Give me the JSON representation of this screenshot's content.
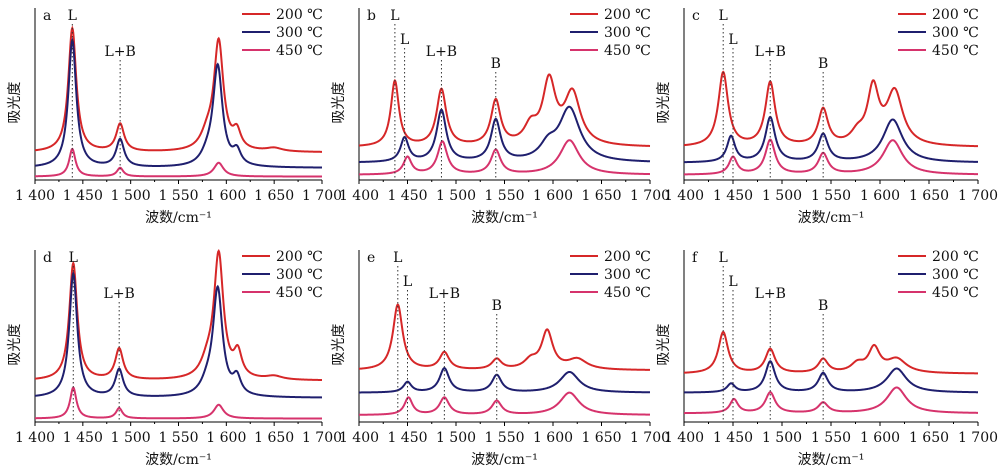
{
  "figure": {
    "background": "#ffffff"
  },
  "series_colors": [
    "#d62728",
    "#1f1f6e",
    "#d6336c"
  ],
  "chart_data": [
    {
      "panel": "a",
      "type": "line",
      "xlabel": "波数/cm⁻¹",
      "ylabel": "吸光度",
      "xlim": [
        1400,
        1700
      ],
      "xticks": [
        "1 400",
        "1 450",
        "1 500",
        "1 550",
        "1 600",
        "1 650",
        "1 700"
      ],
      "ylim": [
        0,
        1.0
      ],
      "legend": [
        "200 ℃",
        "300 ℃",
        "450 ℃"
      ],
      "legend_position": "top-right",
      "annotations": [
        {
          "text": "L",
          "x": 1439
        },
        {
          "text": "L+B",
          "x": 1489
        }
      ],
      "series": [
        {
          "baseline": 0.16,
          "peaks": [
            [
              1439,
              0.72,
              5
            ],
            [
              1489,
              0.16,
              5
            ],
            [
              1580,
              0.08,
              8
            ],
            [
              1592,
              0.63,
              6
            ],
            [
              1611,
              0.1,
              5
            ],
            [
              1650,
              0.02,
              10
            ]
          ]
        },
        {
          "baseline": 0.07,
          "peaks": [
            [
              1439,
              0.74,
              5
            ],
            [
              1489,
              0.16,
              5
            ],
            [
              1580,
              0.05,
              8
            ],
            [
              1591,
              0.58,
              6
            ],
            [
              1611,
              0.08,
              5
            ]
          ]
        },
        {
          "baseline": 0.02,
          "peaks": [
            [
              1439,
              0.16,
              4
            ],
            [
              1489,
              0.05,
              4
            ],
            [
              1592,
              0.08,
              6
            ]
          ]
        }
      ]
    },
    {
      "panel": "b",
      "type": "line",
      "xlabel": "波数/cm⁻¹",
      "ylabel": "吸光度",
      "xlim": [
        1400,
        1700
      ],
      "xticks": [
        "1 400",
        "1 450",
        "1 500",
        "1 550",
        "1 600",
        "1 650",
        "1 700"
      ],
      "ylim": [
        0,
        1.0
      ],
      "legend": [
        "200 ℃",
        "300 ℃",
        "450 ℃"
      ],
      "legend_position": "top-right",
      "annotations": [
        {
          "text": "L",
          "x": 1437
        },
        {
          "text": "L",
          "x": 1447
        },
        {
          "text": "L+B",
          "x": 1485
        },
        {
          "text": "B",
          "x": 1541
        }
      ],
      "series": [
        {
          "baseline": 0.19,
          "peaks": [
            [
              1437,
              0.38,
              5
            ],
            [
              1485,
              0.33,
              6
            ],
            [
              1541,
              0.26,
              6
            ],
            [
              1577,
              0.1,
              8
            ],
            [
              1596,
              0.36,
              8
            ],
            [
              1620,
              0.3,
              10
            ]
          ]
        },
        {
          "baseline": 0.1,
          "peaks": [
            [
              1447,
              0.14,
              5
            ],
            [
              1485,
              0.3,
              6
            ],
            [
              1541,
              0.24,
              6
            ],
            [
              1595,
              0.08,
              10
            ],
            [
              1617,
              0.31,
              13
            ]
          ]
        },
        {
          "baseline": 0.03,
          "peaks": [
            [
              1450,
              0.1,
              5
            ],
            [
              1486,
              0.19,
              6
            ],
            [
              1541,
              0.14,
              6
            ],
            [
              1617,
              0.2,
              12
            ]
          ]
        }
      ]
    },
    {
      "panel": "c",
      "type": "line",
      "xlabel": "波数/cm⁻¹",
      "ylabel": "吸光度",
      "xlim": [
        1400,
        1700
      ],
      "xticks": [
        "1 400",
        "1 450",
        "1 500",
        "1 550",
        "1 600",
        "1 650",
        "1 700"
      ],
      "ylim": [
        0,
        1.0
      ],
      "legend": [
        "200 ℃",
        "300 ℃",
        "450 ℃"
      ],
      "legend_position": "top-right",
      "annotations": [
        {
          "text": "L",
          "x": 1440
        },
        {
          "text": "L",
          "x": 1450
        },
        {
          "text": "L+B",
          "x": 1488
        },
        {
          "text": "B",
          "x": 1542
        }
      ],
      "series": [
        {
          "baseline": 0.19,
          "peaks": [
            [
              1440,
              0.43,
              6
            ],
            [
              1488,
              0.37,
              6
            ],
            [
              1542,
              0.21,
              6
            ],
            [
              1577,
              0.06,
              8
            ],
            [
              1593,
              0.32,
              7
            ],
            [
              1615,
              0.31,
              10
            ]
          ]
        },
        {
          "baseline": 0.1,
          "peaks": [
            [
              1448,
              0.15,
              5
            ],
            [
              1488,
              0.26,
              6
            ],
            [
              1542,
              0.16,
              6
            ],
            [
              1613,
              0.25,
              12
            ]
          ]
        },
        {
          "baseline": 0.03,
          "peaks": [
            [
              1450,
              0.1,
              5
            ],
            [
              1488,
              0.2,
              6
            ],
            [
              1542,
              0.12,
              6
            ],
            [
              1613,
              0.2,
              12
            ]
          ]
        }
      ]
    },
    {
      "panel": "d",
      "type": "line",
      "xlabel": "波数/cm⁻¹",
      "ylabel": "吸光度",
      "xlim": [
        1400,
        1700
      ],
      "xticks": [
        "1 400",
        "1 450",
        "1 500",
        "1 550",
        "1 600",
        "1 650",
        "1 700"
      ],
      "ylim": [
        0,
        1.0
      ],
      "legend": [
        "200 ℃",
        "300 ℃",
        "450 ℃"
      ],
      "legend_position": "top-right",
      "annotations": [
        {
          "text": "L",
          "x": 1440
        },
        {
          "text": "L+B",
          "x": 1488
        }
      ],
      "series": [
        {
          "baseline": 0.24,
          "peaks": [
            [
              1440,
              0.68,
              5
            ],
            [
              1488,
              0.18,
              5
            ],
            [
              1580,
              0.08,
              8
            ],
            [
              1592,
              0.72,
              6
            ],
            [
              1612,
              0.14,
              5
            ],
            [
              1650,
              0.02,
              10
            ]
          ]
        },
        {
          "baseline": 0.14,
          "peaks": [
            [
              1440,
              0.72,
              5
            ],
            [
              1488,
              0.16,
              5
            ],
            [
              1580,
              0.06,
              8
            ],
            [
              1591,
              0.62,
              6
            ],
            [
              1611,
              0.1,
              5
            ]
          ]
        },
        {
          "baseline": 0.02,
          "peaks": [
            [
              1440,
              0.18,
              4
            ],
            [
              1488,
              0.06,
              4
            ],
            [
              1592,
              0.08,
              6
            ]
          ]
        }
      ]
    },
    {
      "panel": "e",
      "type": "line",
      "xlabel": "波数/cm⁻¹",
      "ylabel": "吸光度",
      "xlim": [
        1400,
        1700
      ],
      "xticks": [
        "1 400",
        "1 450",
        "1 500",
        "1 550",
        "1 600",
        "1 650",
        "1 700"
      ],
      "ylim": [
        0,
        1.0
      ],
      "legend": [
        "200 ℃",
        "300 ℃",
        "450 ℃"
      ],
      "legend_position": "top-right",
      "annotations": [
        {
          "text": "L",
          "x": 1440
        },
        {
          "text": "L",
          "x": 1450
        },
        {
          "text": "L+B",
          "x": 1488
        },
        {
          "text": "B",
          "x": 1542
        }
      ],
      "series": [
        {
          "baseline": 0.3,
          "peaks": [
            [
              1440,
              0.38,
              6
            ],
            [
              1488,
              0.1,
              6
            ],
            [
              1542,
              0.06,
              6
            ],
            [
              1577,
              0.05,
              8
            ],
            [
              1594,
              0.22,
              7
            ],
            [
              1625,
              0.06,
              12
            ]
          ]
        },
        {
          "baseline": 0.17,
          "peaks": [
            [
              1450,
              0.06,
              5
            ],
            [
              1488,
              0.14,
              6
            ],
            [
              1542,
              0.1,
              6
            ],
            [
              1617,
              0.12,
              12
            ]
          ]
        },
        {
          "baseline": 0.04,
          "peaks": [
            [
              1451,
              0.1,
              5
            ],
            [
              1488,
              0.1,
              6
            ],
            [
              1542,
              0.08,
              6
            ],
            [
              1617,
              0.13,
              12
            ]
          ]
        }
      ]
    },
    {
      "panel": "f",
      "type": "line",
      "xlabel": "波数/cm⁻¹",
      "ylabel": "吸光度",
      "xlim": [
        1400,
        1700
      ],
      "xticks": [
        "1 400",
        "1 450",
        "1 500",
        "1 550",
        "1 600",
        "1 650",
        "1 700"
      ],
      "ylim": [
        0,
        1.0
      ],
      "legend": [
        "200 ℃",
        "300 ℃",
        "450 ℃"
      ],
      "legend_position": "top-right",
      "annotations": [
        {
          "text": "L",
          "x": 1440
        },
        {
          "text": "L",
          "x": 1450
        },
        {
          "text": "L+B",
          "x": 1488
        },
        {
          "text": "B",
          "x": 1542
        }
      ],
      "series": [
        {
          "baseline": 0.28,
          "peaks": [
            [
              1440,
              0.24,
              6
            ],
            [
              1488,
              0.14,
              6
            ],
            [
              1542,
              0.08,
              6
            ],
            [
              1577,
              0.05,
              8
            ],
            [
              1594,
              0.14,
              7
            ],
            [
              1617,
              0.08,
              12
            ]
          ]
        },
        {
          "baseline": 0.17,
          "peaks": [
            [
              1448,
              0.05,
              5
            ],
            [
              1488,
              0.18,
              6
            ],
            [
              1542,
              0.11,
              6
            ],
            [
              1617,
              0.14,
              12
            ]
          ]
        },
        {
          "baseline": 0.05,
          "peaks": [
            [
              1451,
              0.08,
              5
            ],
            [
              1488,
              0.12,
              6
            ],
            [
              1542,
              0.06,
              6
            ],
            [
              1617,
              0.15,
              12
            ]
          ]
        }
      ]
    }
  ]
}
